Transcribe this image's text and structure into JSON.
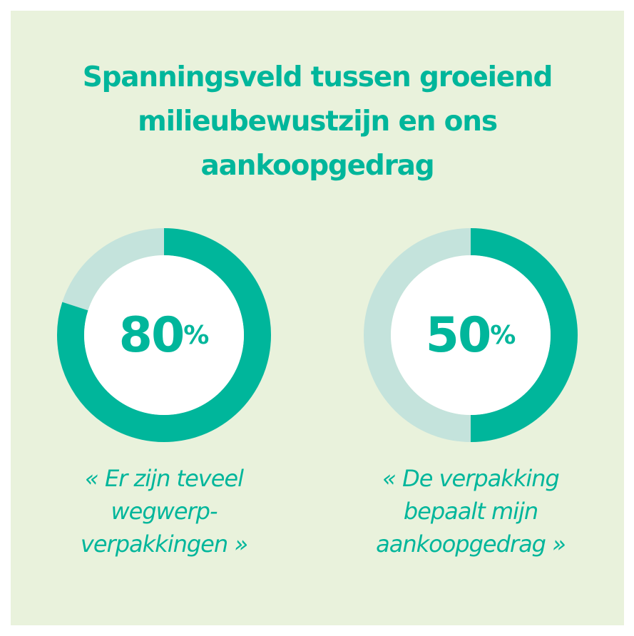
{
  "colors": {
    "background": "#e9f2dc",
    "accent": "#00b69b",
    "track": "#c4e3dc",
    "center": "#ffffff"
  },
  "title": {
    "lines": [
      "Spanningsveld tussen groeiend",
      "milieubewustzijn en ons",
      "aankoopgedrag"
    ]
  },
  "chart_data": [
    {
      "type": "pie",
      "style": "donut",
      "value": 80,
      "max": 100,
      "label": "80",
      "unit": "%",
      "caption_lines": [
        "« Er zijn teveel",
        "wegwerp-",
        "verpakkingen »"
      ]
    },
    {
      "type": "pie",
      "style": "donut",
      "value": 50,
      "max": 100,
      "label": "50",
      "unit": "%",
      "caption_lines": [
        "« De verpakking",
        "bepaalt mijn",
        "aankoopgedrag »"
      ]
    }
  ]
}
